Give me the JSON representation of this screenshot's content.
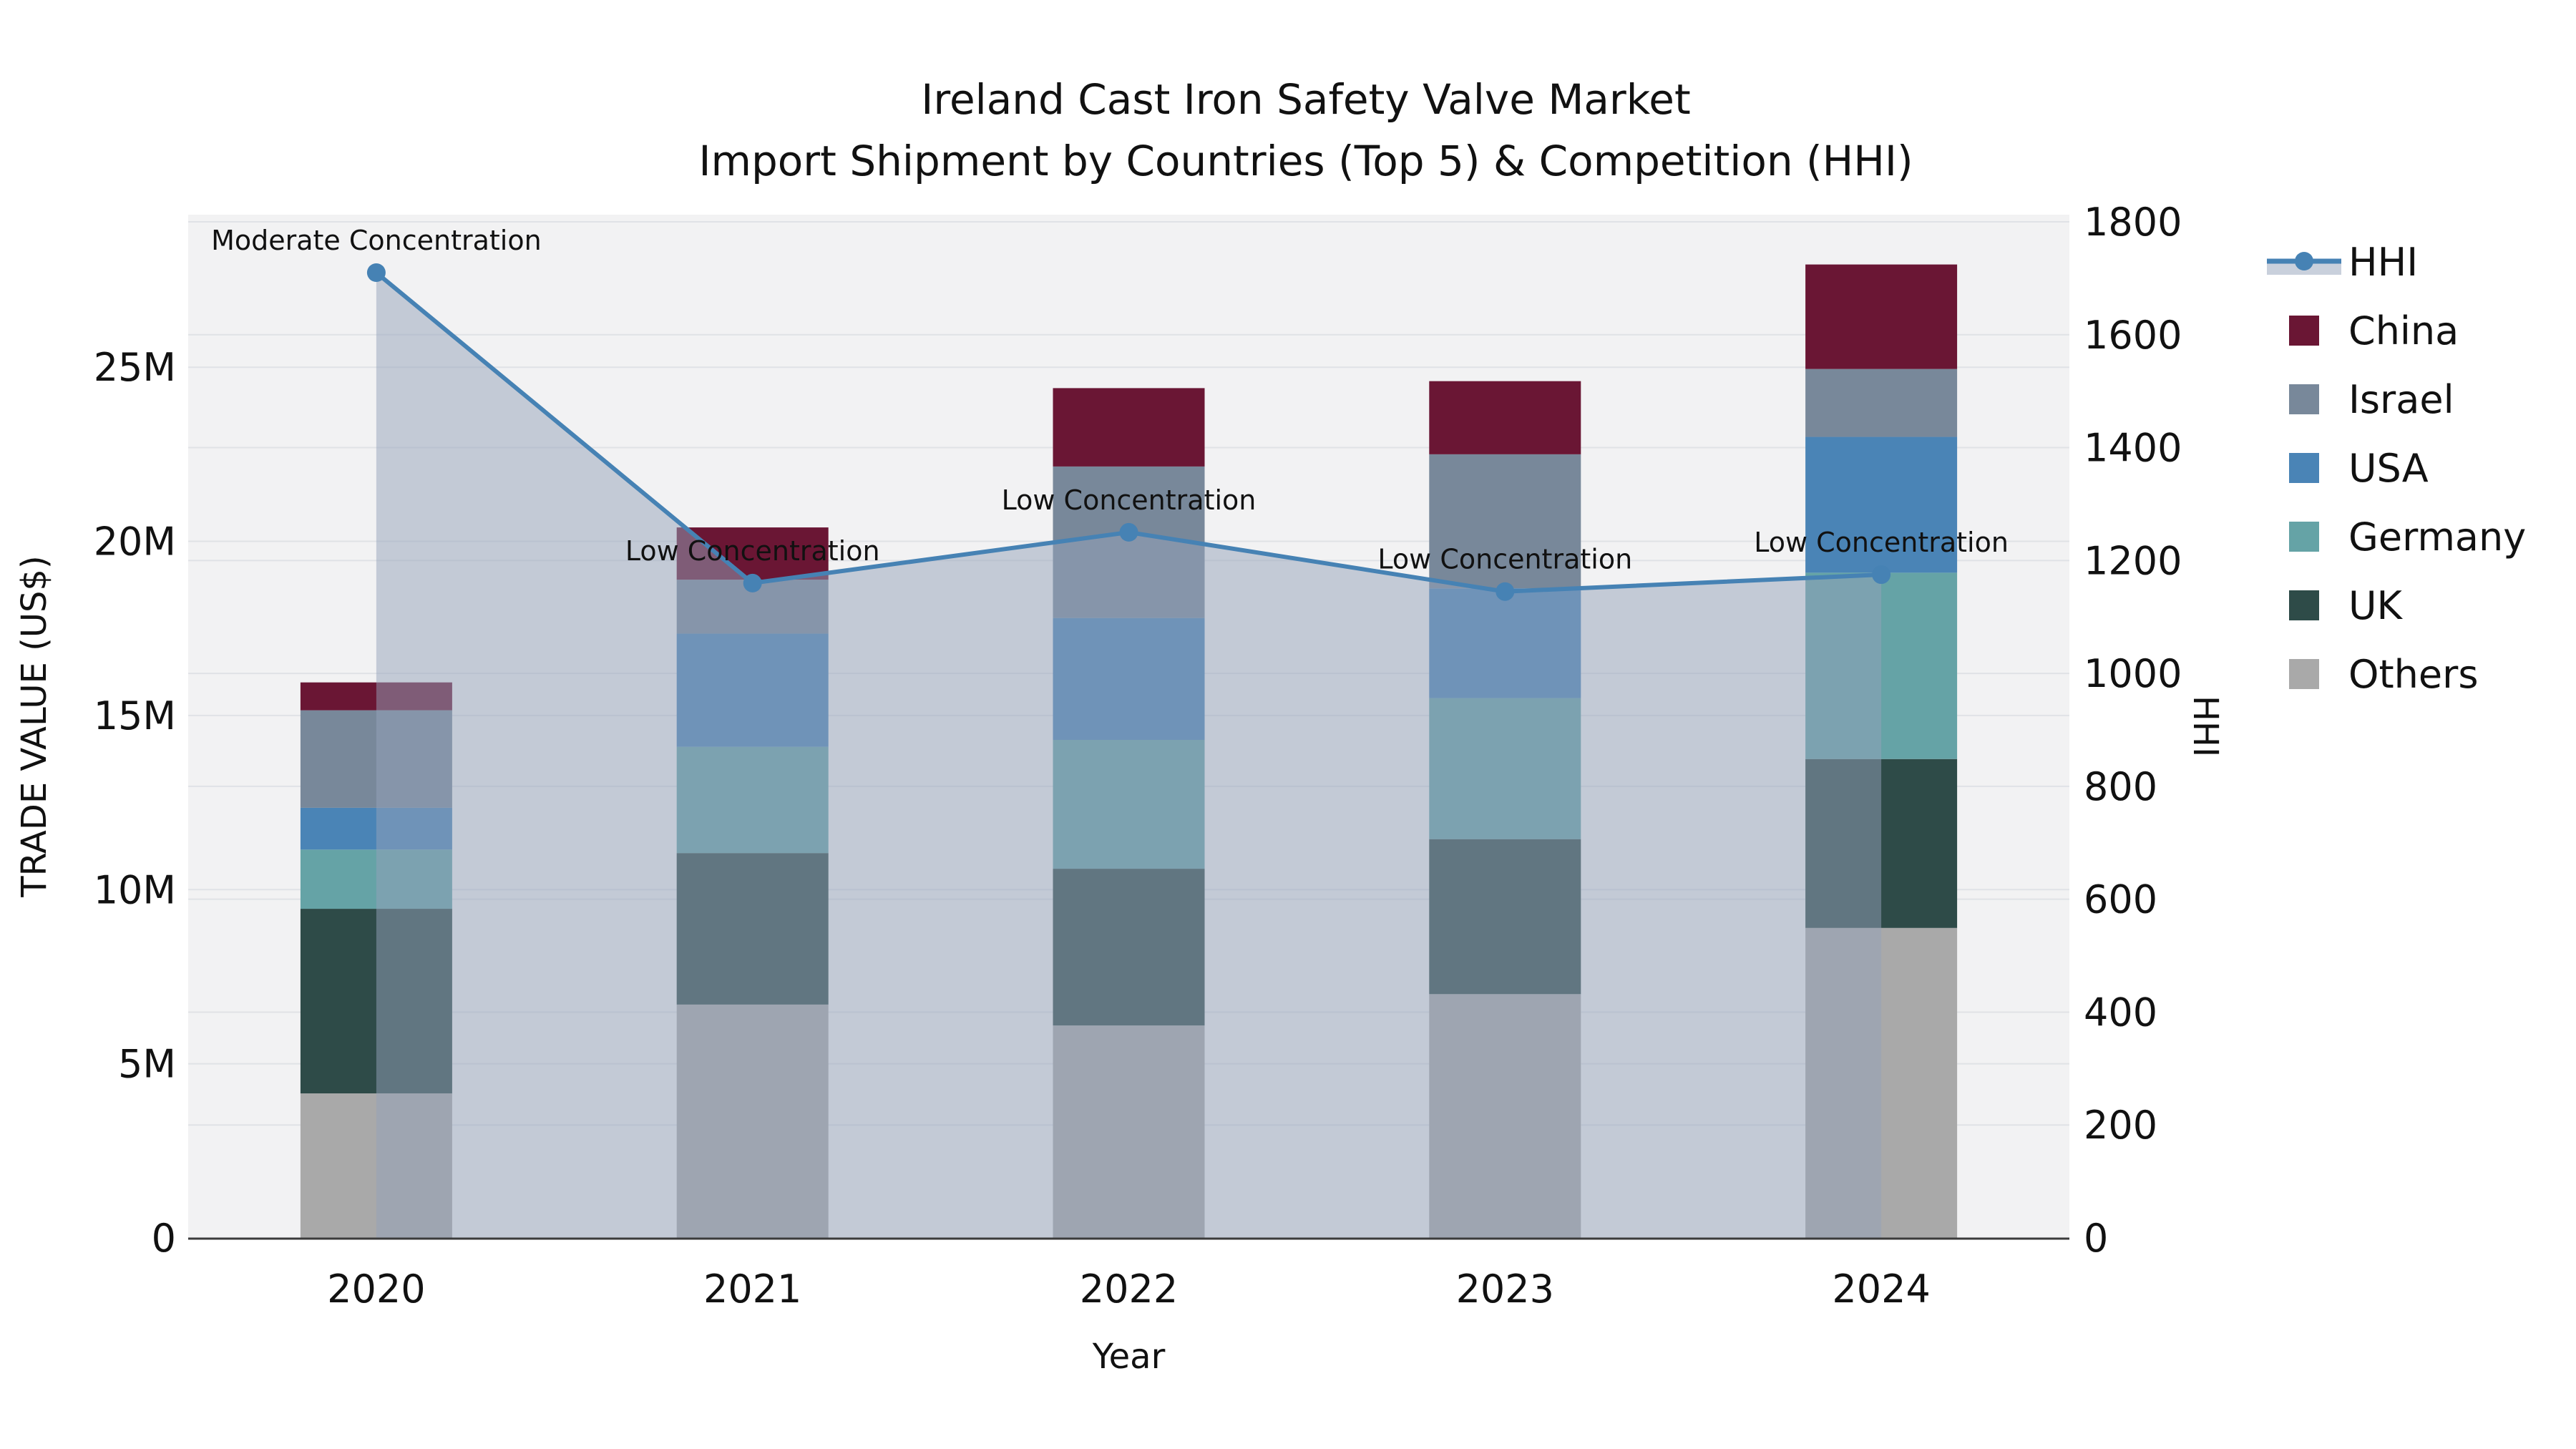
{
  "title": {
    "line1": "Ireland Cast Iron Safety Valve Market",
    "line2": "Import Shipment by Countries (Top 5) & Competition (HHI)"
  },
  "y_left_axis": {
    "title": "TRADE VALUE (US$)",
    "tick_labels": [
      "0",
      "5M",
      "10M",
      "15M",
      "20M",
      "25M"
    ],
    "tick_values_millions": [
      0,
      5,
      10,
      15,
      20,
      25
    ]
  },
  "y_right_axis": {
    "title": "HHI",
    "tick_values": [
      0,
      200,
      400,
      600,
      800,
      1000,
      1200,
      1400,
      1600,
      1800
    ]
  },
  "x_axis": {
    "title": "Year",
    "categories": [
      "2020",
      "2021",
      "2022",
      "2023",
      "2024"
    ]
  },
  "legend": {
    "items": [
      {
        "label": "HHI",
        "type": "line",
        "color": "#4682b4"
      },
      {
        "label": "China",
        "type": "swatch",
        "color": "#6a1634"
      },
      {
        "label": "Israel",
        "type": "swatch",
        "color": "#78889a"
      },
      {
        "label": "USA",
        "type": "swatch",
        "color": "#4a84b6"
      },
      {
        "label": "Germany",
        "type": "swatch",
        "color": "#65a3a6"
      },
      {
        "label": "UK",
        "type": "swatch",
        "color": "#2e4b48"
      },
      {
        "label": "Others",
        "type": "swatch",
        "color": "#a9a9a9"
      }
    ]
  },
  "annotations": [
    {
      "text": "Moderate Concentration",
      "year": "2020"
    },
    {
      "text": "Low Concentration",
      "year": "2021"
    },
    {
      "text": "Low Concentration",
      "year": "2022"
    },
    {
      "text": "Low Concentration",
      "year": "2023"
    },
    {
      "text": "Low Concentration",
      "year": "2024"
    }
  ],
  "chart_data": {
    "type": "bar+line",
    "stacked": true,
    "categories": [
      "2020",
      "2021",
      "2022",
      "2023",
      "2024"
    ],
    "bar_unit": "millions US$",
    "series": [
      {
        "name": "Others",
        "color": "#a9a9a9",
        "values": [
          4.15,
          6.7,
          6.1,
          7.0,
          8.9
        ]
      },
      {
        "name": "UK",
        "color": "#2e4b48",
        "values": [
          5.3,
          4.35,
          4.5,
          4.45,
          4.85
        ]
      },
      {
        "name": "Germany",
        "color": "#65a3a6",
        "values": [
          1.7,
          3.05,
          3.7,
          4.05,
          5.35
        ]
      },
      {
        "name": "USA",
        "color": "#4a84b6",
        "values": [
          1.2,
          3.25,
          3.5,
          3.15,
          3.9
        ]
      },
      {
        "name": "Israel",
        "color": "#78889a",
        "values": [
          2.8,
          1.55,
          4.35,
          3.85,
          1.95
        ]
      },
      {
        "name": "China",
        "color": "#6a1634",
        "values": [
          0.8,
          1.5,
          2.25,
          2.1,
          3.0
        ]
      }
    ],
    "line": {
      "name": "HHI",
      "color": "#4682b4",
      "fill_color": "rgba(148,162,186,0.5)",
      "values": [
        1710,
        1160,
        1250,
        1145,
        1175
      ]
    },
    "ylim_left_millions": [
      0,
      25
    ],
    "ylim_right": [
      0,
      1800
    ],
    "legend_position": "right",
    "grid": true,
    "plot_bg": "#f2f2f3",
    "grid_color": "#e0e2e6",
    "axis_line_color": "#3b3b3b"
  }
}
